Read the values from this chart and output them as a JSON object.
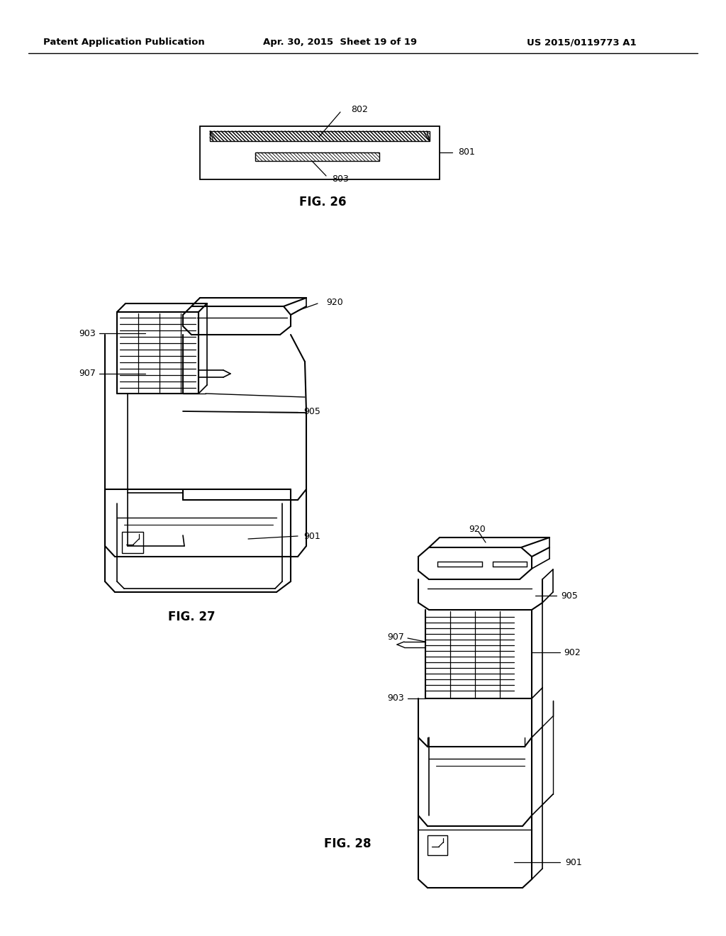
{
  "background_color": "#ffffff",
  "header_left": "Patent Application Publication",
  "header_center": "Apr. 30, 2015  Sheet 19 of 19",
  "header_right": "US 2015/0119773 A1",
  "fig26_label": "FIG. 26",
  "fig27_label": "FIG. 27",
  "fig28_label": "FIG. 28",
  "line_color": "#000000"
}
